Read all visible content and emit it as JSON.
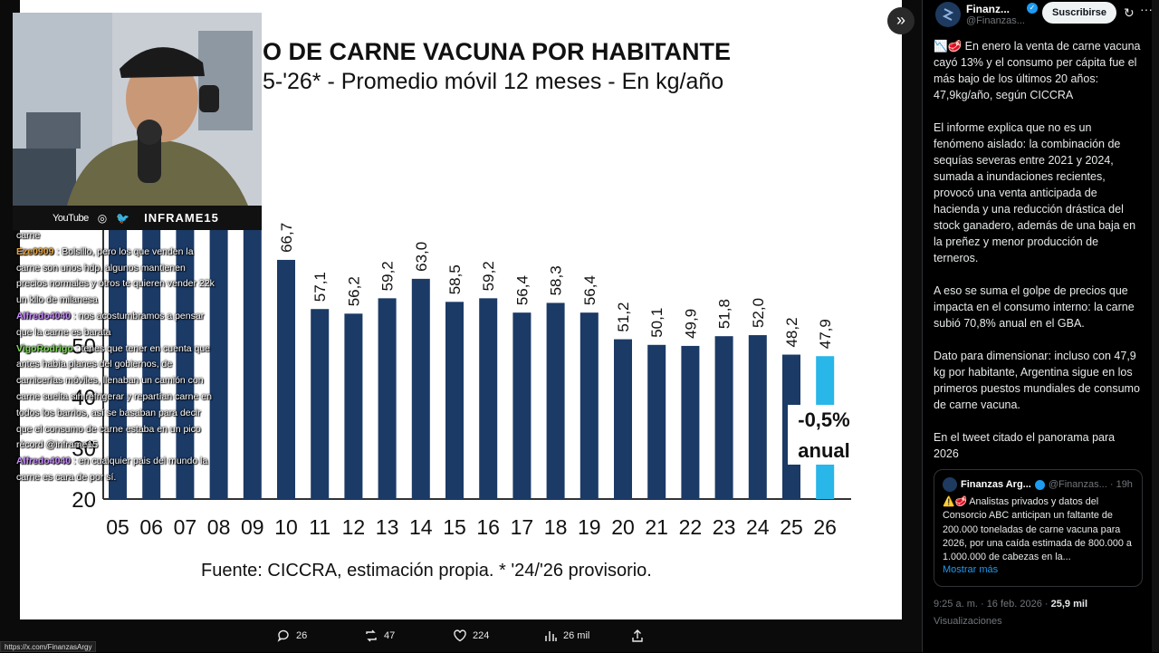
{
  "slide": {
    "title_line1": "O DE CARNE VACUNA POR HABITANTE",
    "title_line2": "5-'26* - Promedio móvil 12 meses -  En kg/año",
    "source": "Fuente: CICCRA, estimación propia. * '24/'26 provisorio.",
    "annotation_line1": "-0,5%",
    "annotation_line2": "anual",
    "colors": {
      "bar": "#1b3a66",
      "highlight": "#29b6e9"
    }
  },
  "chart_data": {
    "type": "bar",
    "categories": [
      "05",
      "06",
      "07",
      "08",
      "09",
      "10",
      "11",
      "12",
      "13",
      "14",
      "15",
      "16",
      "17",
      "18",
      "19",
      "20",
      "21",
      "22",
      "23",
      "24",
      "25",
      "26"
    ],
    "values": [
      null,
      null,
      null,
      null,
      null,
      66.7,
      57.1,
      56.2,
      59.2,
      63.0,
      58.5,
      59.2,
      56.4,
      58.3,
      56.4,
      51.2,
      50.1,
      49.9,
      51.8,
      52.0,
      48.2,
      47.9
    ],
    "value_labels": [
      "",
      "",
      "",
      "",
      "",
      "66,7",
      "57,1",
      "56,2",
      "59,2",
      "63,0",
      "58,5",
      "59,2",
      "56,4",
      "58,3",
      "56,4",
      "51,2",
      "50,1",
      "49,9",
      "51,8",
      "52,0",
      "48,2",
      "47,9"
    ],
    "ylim": [
      20,
      75
    ],
    "y_ticks": [
      "50",
      "40",
      "30",
      "20"
    ],
    "highlight_category": "26",
    "legend": "none"
  },
  "webcam": {
    "youtube_label": "YouTube",
    "handle": "INFRAME15"
  },
  "chat": {
    "lines": [
      {
        "user": "",
        "text": "carne"
      },
      {
        "user": "Eze0909",
        "text": ": Bolsillo, pero los que venden la carne son unos hdp. algunos mantienen precios normales y otros te quieren vender 22k un kilo de milanesa"
      },
      {
        "user": "Alfredo4040",
        "text": ": nos acostumbramos a pensar que la carne es barata"
      },
      {
        "user": "VigoRodrigo",
        "text": ": tenes que tener en cuenta que antes había planes del gobiernos, de carnicerías móviles, llenaban un camión con carne suelta sin refrigerar y repartían carne en todos los barrios, así se basaban para decir que el consumo de carne estaba en un pico récord @inframe15"
      },
      {
        "user": "Alfredo4040",
        "text": ": en cualquier pais del mundo la carne es cara de por sí."
      }
    ]
  },
  "actions": {
    "replies": "26",
    "reposts": "47",
    "likes": "224",
    "views": "26 mil"
  },
  "status_url": "https://x.com/FinanzasArgy",
  "panel": {
    "account_name": "Finanz...",
    "account_handle": "@Finanzas...",
    "subscribe_label": "Suscribirse",
    "tweet_paragraphs": [
      "📉🥩 En enero la venta de carne vacuna cayó 13% y el consumo per cápita fue el más bajo de los últimos 20 años: 47,9kg/año, según CICCRA",
      "El informe explica que no es un fenómeno aislado: la combinación de sequías severas entre 2021 y 2024, sumada a inundaciones recientes, provocó una venta anticipada de hacienda y una reducción drástica del stock ganadero, además de una baja en la preñez y menor producción de terneros.",
      "A eso se suma el golpe de precios que impacta en el consumo interno: la carne subió 70,8% anual en el GBA.",
      "Dato para dimensionar: incluso con 47,9 kg por habitante, Argentina sigue en los primeros puestos mundiales de consumo de carne vacuna.",
      "En el tweet citado el panorama para 2026"
    ],
    "quote": {
      "name": "Finanzas Arg...",
      "handle_time": "@Finanzas... · 19h",
      "text": "⚠️🥩 Analistas privados y datos del Consorcio ABC anticipan un faltante de 200.000 toneladas de carne vacuna para 2026, por una caída estimada de 800.000 a 1.000.000 de cabezas en la...",
      "more": "Mostrar más"
    },
    "timestamp": "9:25 a. m. · 16 feb. 2026 · ",
    "views_count": "25,9 mil",
    "views_label": "Visualizaciones"
  }
}
